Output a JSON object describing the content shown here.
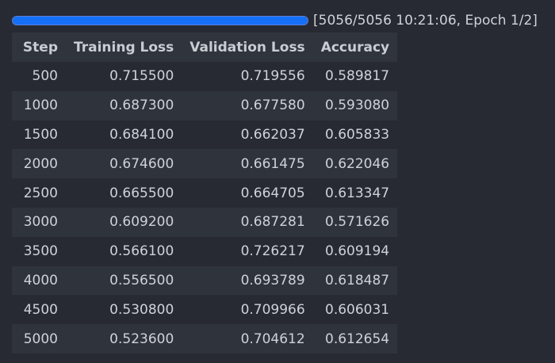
{
  "progress": {
    "fraction": 1.0,
    "status_text": "[5056/5056 10:21:06, Epoch 1/2]",
    "fill_color": "#1670f5"
  },
  "table": {
    "columns": [
      "Step",
      "Training Loss",
      "Validation Loss",
      "Accuracy"
    ],
    "rows": [
      {
        "step": "500",
        "training_loss": "0.715500",
        "validation_loss": "0.719556",
        "accuracy": "0.589817"
      },
      {
        "step": "1000",
        "training_loss": "0.687300",
        "validation_loss": "0.677580",
        "accuracy": "0.593080"
      },
      {
        "step": "1500",
        "training_loss": "0.684100",
        "validation_loss": "0.662037",
        "accuracy": "0.605833"
      },
      {
        "step": "2000",
        "training_loss": "0.674600",
        "validation_loss": "0.661475",
        "accuracy": "0.622046"
      },
      {
        "step": "2500",
        "training_loss": "0.665500",
        "validation_loss": "0.664705",
        "accuracy": "0.613347"
      },
      {
        "step": "3000",
        "training_loss": "0.609200",
        "validation_loss": "0.687281",
        "accuracy": "0.571626"
      },
      {
        "step": "3500",
        "training_loss": "0.566100",
        "validation_loss": "0.726217",
        "accuracy": "0.609194"
      },
      {
        "step": "4000",
        "training_loss": "0.556500",
        "validation_loss": "0.693789",
        "accuracy": "0.618487"
      },
      {
        "step": "4500",
        "training_loss": "0.530800",
        "validation_loss": "0.709966",
        "accuracy": "0.606031"
      },
      {
        "step": "5000",
        "training_loss": "0.523600",
        "validation_loss": "0.704612",
        "accuracy": "0.612654"
      }
    ]
  }
}
